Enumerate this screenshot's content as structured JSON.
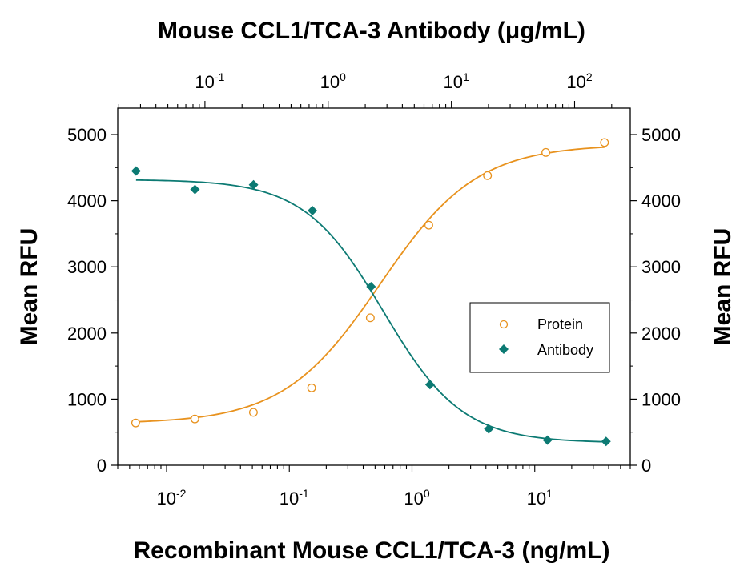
{
  "chart_data": {
    "type": "scatter",
    "title": "Mouse CCL1/TCA-3 Antibody (μg/mL)",
    "xlabel": "Recombinant Mouse CCL1/TCA-3 (ng/mL)",
    "ylabel": "Mean RFU",
    "ylabel_right": "Mean RFU",
    "x_scale": "log",
    "xlim": [
      0.004,
      60
    ],
    "ylim": [
      0,
      5400
    ],
    "top_axis_scale": "log",
    "top_axis_xlim": [
      0.0196,
      283
    ],
    "y_ticks": [
      "0",
      "1000",
      "2000",
      "3000",
      "4000",
      "5000"
    ],
    "x_ticks": [
      {
        "base": "10",
        "exp": "-2",
        "value": 0.01
      },
      {
        "base": "10",
        "exp": "-1",
        "value": 0.1
      },
      {
        "base": "10",
        "exp": "0",
        "value": 1
      },
      {
        "base": "10",
        "exp": "1",
        "value": 10
      }
    ],
    "top_ticks": [
      {
        "base": "10",
        "exp": "-1",
        "value": 0.1
      },
      {
        "base": "10",
        "exp": "0",
        "value": 1
      },
      {
        "base": "10",
        "exp": "1",
        "value": 10
      },
      {
        "base": "10",
        "exp": "2",
        "value": 100
      }
    ],
    "legend_position": "center-right",
    "grid": false,
    "series": [
      {
        "name": "Protein",
        "axis": "bottom",
        "marker": "circle-open",
        "color": "#E8921E",
        "x": [
          0.0056,
          0.017,
          0.051,
          0.152,
          0.457,
          1.37,
          4.12,
          12.3,
          37.0
        ],
        "y": [
          640,
          700,
          800,
          1170,
          2230,
          3630,
          4380,
          4730,
          4880
        ],
        "fit": {
          "bottom": 630,
          "top": 4850,
          "ec50": 0.55,
          "hill": 1.1
        }
      },
      {
        "name": "Antibody",
        "axis": "top",
        "marker": "diamond-filled",
        "color": "#0C7A73",
        "x": [
          0.0276,
          0.083,
          0.248,
          0.745,
          2.23,
          6.7,
          20.1,
          60.3,
          180.0
        ],
        "y": [
          4450,
          4170,
          4240,
          3850,
          2700,
          1220,
          550,
          380,
          360
        ],
        "fit": {
          "bottom": 340,
          "top": 4320,
          "ec50": 2.8,
          "hill": 1.35
        }
      }
    ]
  }
}
